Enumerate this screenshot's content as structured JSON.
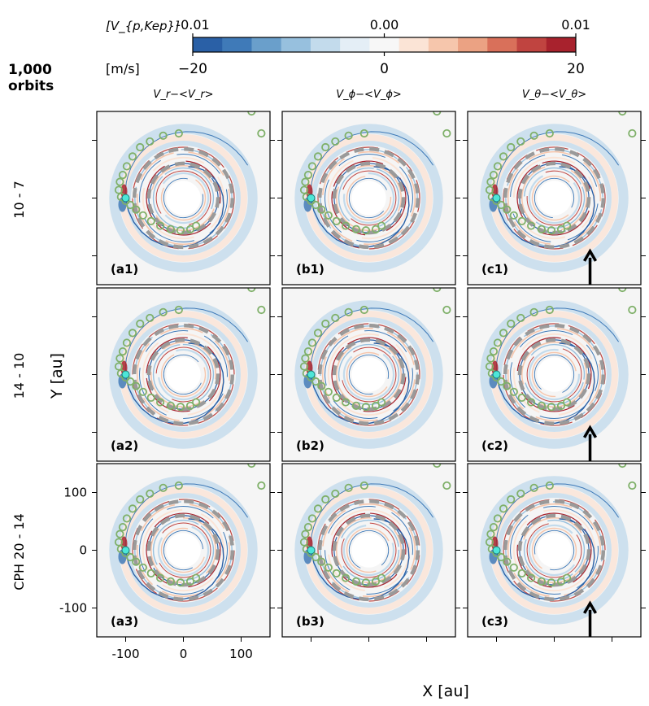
{
  "chart_data": {
    "type": "heatmap",
    "title": "1,000 orbits",
    "xlabel": "X [au]",
    "ylabel": "Y [au]",
    "xlim": [
      -150,
      150
    ],
    "ylim": [
      -150,
      150
    ],
    "xticks": [
      -100,
      0,
      100
    ],
    "yticks": [
      -100,
      0,
      100
    ],
    "xtick_labels": [
      "-100",
      "0",
      "100"
    ],
    "ytick_labels": [
      "-100",
      "0",
      "100"
    ],
    "colorbar": {
      "label_top": "[V_{p,Kep}]",
      "label_bottom": "[m/s]",
      "top_ticks": [
        "-0.01",
        "0.00",
        "0.01"
      ],
      "top_values": [
        -0.01,
        0.0,
        0.01
      ],
      "bottom_ticks": [
        "−20",
        "0",
        "20"
      ],
      "bottom_values": [
        -20,
        0,
        20
      ],
      "colors": [
        "#2a60a6",
        "#3f7ab8",
        "#6a9fcb",
        "#97c0de",
        "#c3dbec",
        "#e4eef6",
        "#f7f7f7",
        "#fbe4d6",
        "#f6c6ac",
        "#eba283",
        "#d9705a",
        "#c04440",
        "#a8222d"
      ]
    },
    "columns": [
      "V_r−<V_r>",
      "V_ϕ−<V_ϕ>",
      "V_θ−<V_θ>"
    ],
    "rows": [
      "10 - 7",
      "14 - 10",
      "CPH 20 - 14"
    ],
    "panel_labels": [
      [
        "(a1)",
        "(b1)",
        "(c1)"
      ],
      [
        "(a2)",
        "(b2)",
        "(c2)"
      ],
      [
        "(a3)",
        "(b3)",
        "(c3)"
      ]
    ],
    "gap_radii_dashed": [
      60,
      85
    ],
    "inner_cavity_radius": 30,
    "planet_position": [
      -100,
      0
    ],
    "arrow_column": "c",
    "arrow_tip": [
      62,
      -92
    ],
    "spiral_markers": [
      [
        -8,
        112
      ],
      [
        -35,
        108
      ],
      [
        -58,
        98
      ],
      [
        -75,
        88
      ],
      [
        -88,
        72
      ],
      [
        -98,
        55
      ],
      [
        -105,
        40
      ],
      [
        -110,
        28
      ],
      [
        -112,
        14
      ],
      [
        -108,
        2
      ],
      [
        -100,
        -5
      ],
      [
        -92,
        -12
      ],
      [
        -82,
        -20
      ],
      [
        -70,
        -30
      ],
      [
        -56,
        -40
      ],
      [
        -40,
        -48
      ],
      [
        -22,
        -54
      ],
      [
        -5,
        -56
      ],
      [
        12,
        -54
      ],
      [
        22,
        -48
      ],
      [
        135,
        112
      ],
      [
        118,
        150
      ]
    ]
  }
}
